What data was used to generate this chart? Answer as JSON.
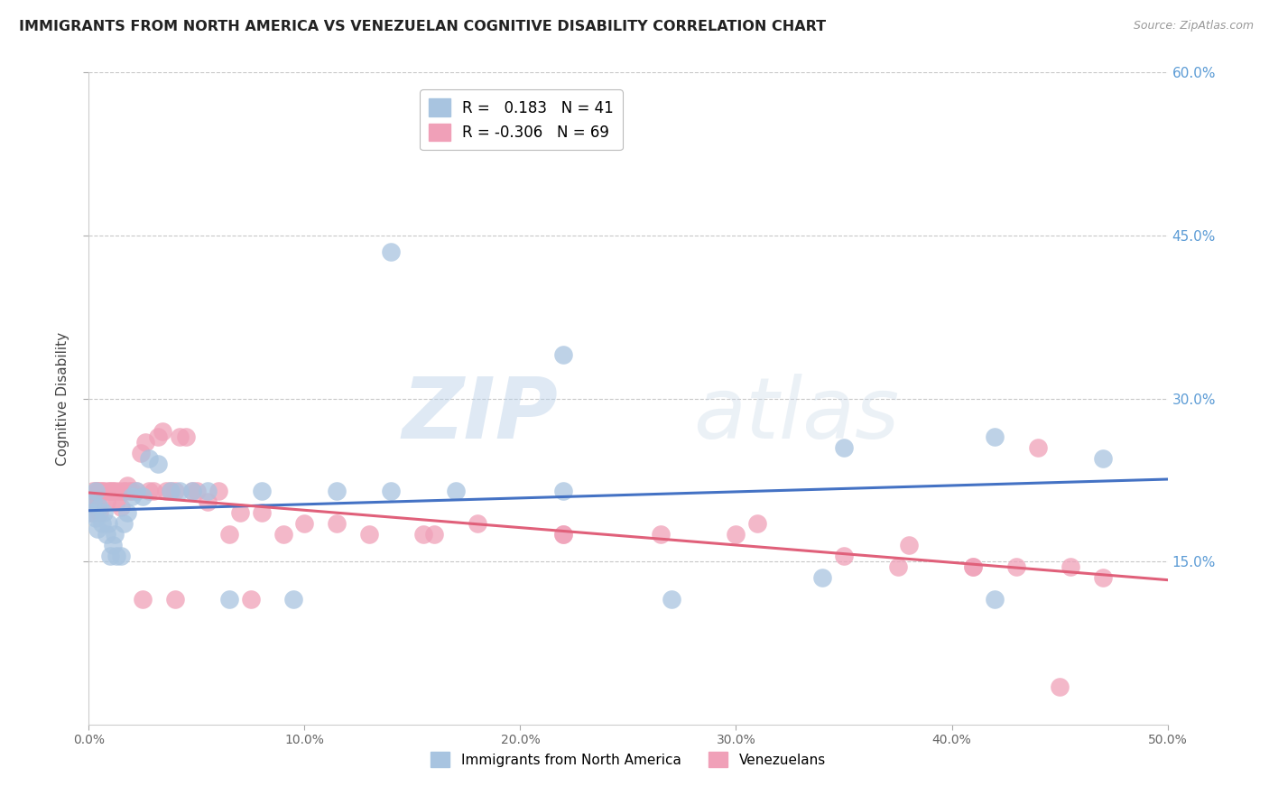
{
  "title": "IMMIGRANTS FROM NORTH AMERICA VS VENEZUELAN COGNITIVE DISABILITY CORRELATION CHART",
  "source": "Source: ZipAtlas.com",
  "ylabel": "Cognitive Disability",
  "xlim": [
    0.0,
    0.5
  ],
  "ylim": [
    0.0,
    0.6
  ],
  "xticks": [
    0.0,
    0.1,
    0.2,
    0.3,
    0.4,
    0.5
  ],
  "yticks": [
    0.15,
    0.3,
    0.45,
    0.6
  ],
  "xticklabels": [
    "0.0%",
    "10.0%",
    "20.0%",
    "30.0%",
    "40.0%",
    "50.0%"
  ],
  "yticklabels_right": [
    "15.0%",
    "30.0%",
    "45.0%",
    "60.0%"
  ],
  "background_color": "#ffffff",
  "grid_color": "#c8c8c8",
  "blue_color": "#a8c4e0",
  "pink_color": "#f0a0b8",
  "blue_line_color": "#4472c4",
  "pink_line_color": "#e0607a",
  "right_axis_color": "#5b9bd5",
  "legend_label1": "R =   0.183   N = 41",
  "legend_label2": "R = -0.306   N = 69",
  "watermark_zip": "ZIP",
  "watermark_atlas": "atlas",
  "blue_scatter_x": [
    0.001,
    0.002,
    0.003,
    0.003,
    0.004,
    0.005,
    0.006,
    0.007,
    0.008,
    0.009,
    0.01,
    0.011,
    0.012,
    0.013,
    0.015,
    0.016,
    0.018,
    0.02,
    0.022,
    0.025,
    0.028,
    0.032,
    0.038,
    0.042,
    0.048,
    0.055,
    0.065,
    0.08,
    0.095,
    0.115,
    0.14,
    0.17,
    0.22,
    0.27,
    0.34,
    0.42,
    0.47,
    0.14,
    0.22,
    0.35,
    0.42
  ],
  "blue_scatter_y": [
    0.195,
    0.205,
    0.19,
    0.215,
    0.18,
    0.2,
    0.185,
    0.195,
    0.175,
    0.185,
    0.155,
    0.165,
    0.175,
    0.155,
    0.155,
    0.185,
    0.195,
    0.21,
    0.215,
    0.21,
    0.245,
    0.24,
    0.215,
    0.215,
    0.215,
    0.215,
    0.115,
    0.215,
    0.115,
    0.215,
    0.215,
    0.215,
    0.215,
    0.115,
    0.135,
    0.115,
    0.245,
    0.435,
    0.34,
    0.255,
    0.265
  ],
  "pink_scatter_x": [
    0.001,
    0.001,
    0.002,
    0.002,
    0.003,
    0.003,
    0.004,
    0.004,
    0.005,
    0.005,
    0.006,
    0.007,
    0.008,
    0.009,
    0.01,
    0.011,
    0.012,
    0.013,
    0.014,
    0.015,
    0.016,
    0.017,
    0.018,
    0.019,
    0.02,
    0.022,
    0.024,
    0.026,
    0.028,
    0.03,
    0.032,
    0.034,
    0.036,
    0.038,
    0.04,
    0.042,
    0.045,
    0.048,
    0.05,
    0.055,
    0.06,
    0.065,
    0.07,
    0.08,
    0.09,
    0.1,
    0.115,
    0.13,
    0.155,
    0.18,
    0.22,
    0.265,
    0.31,
    0.35,
    0.38,
    0.41,
    0.43,
    0.44,
    0.455,
    0.47,
    0.025,
    0.04,
    0.075,
    0.16,
    0.22,
    0.3,
    0.375,
    0.41,
    0.45
  ],
  "pink_scatter_y": [
    0.205,
    0.195,
    0.215,
    0.205,
    0.215,
    0.2,
    0.215,
    0.205,
    0.215,
    0.195,
    0.215,
    0.215,
    0.205,
    0.215,
    0.215,
    0.215,
    0.215,
    0.205,
    0.215,
    0.2,
    0.215,
    0.215,
    0.22,
    0.215,
    0.215,
    0.215,
    0.25,
    0.26,
    0.215,
    0.215,
    0.265,
    0.27,
    0.215,
    0.215,
    0.215,
    0.265,
    0.265,
    0.215,
    0.215,
    0.205,
    0.215,
    0.175,
    0.195,
    0.195,
    0.175,
    0.185,
    0.185,
    0.175,
    0.175,
    0.185,
    0.175,
    0.175,
    0.185,
    0.155,
    0.165,
    0.145,
    0.145,
    0.255,
    0.145,
    0.135,
    0.115,
    0.115,
    0.115,
    0.175,
    0.175,
    0.175,
    0.145,
    0.145,
    0.035
  ]
}
